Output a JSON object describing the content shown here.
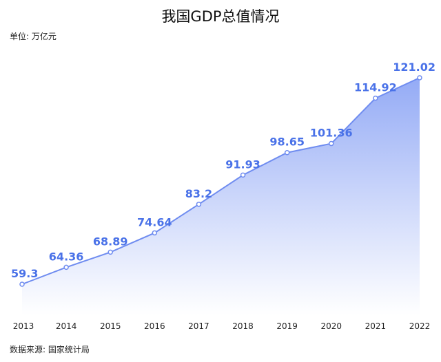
{
  "title": "我国GDP总值情况",
  "unit_text": "单位: 万亿元",
  "source_text": "数据来源: 国家统计局",
  "colors": {
    "line": "#6f8cf0",
    "area_top": "#8ea6f5",
    "area_bottom": "#ffffff",
    "label": "#4a72e8"
  },
  "chart_data": {
    "type": "area",
    "title": "我国GDP总值情况",
    "ylabel": "单位: 万亿元",
    "categories": [
      "2013",
      "2014",
      "2015",
      "2016",
      "2017",
      "2018",
      "2019",
      "2020",
      "2021",
      "2022"
    ],
    "values": [
      59.3,
      64.36,
      68.89,
      74.64,
      83.2,
      91.93,
      98.65,
      101.36,
      114.92,
      121.02
    ],
    "value_labels": [
      "59.3",
      "64.36",
      "68.89",
      "74.64",
      "83.2",
      "91.93",
      "98.65",
      "101.36",
      "114.92",
      "121.02"
    ],
    "grid": false,
    "legend": "none"
  }
}
